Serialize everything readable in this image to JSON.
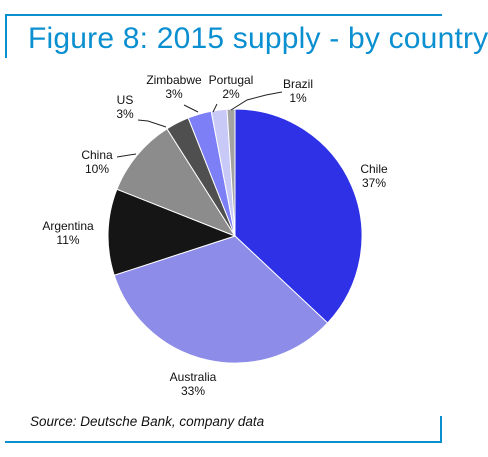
{
  "title": "Figure 8: 2015 supply - by country",
  "source": "Source: Deutsche Bank, company data",
  "colors": {
    "accent": "#0a8fd0"
  },
  "chart_data": {
    "type": "pie",
    "slices": [
      {
        "label": "Chile",
        "value": 37,
        "value_label": "37%",
        "color": "#2e31e6"
      },
      {
        "label": "Australia",
        "value": 33,
        "value_label": "33%",
        "color": "#8d8ce8"
      },
      {
        "label": "Argentina",
        "value": 11,
        "value_label": "11%",
        "color": "#151515"
      },
      {
        "label": "China",
        "value": 10,
        "value_label": "10%",
        "color": "#8c8c8c"
      },
      {
        "label": "US",
        "value": 3,
        "value_label": "3%",
        "color": "#4f4f4f"
      },
      {
        "label": "Zimbabwe",
        "value": 3,
        "value_label": "3%",
        "color": "#7c7ff5"
      },
      {
        "label": "Portugal",
        "value": 2,
        "value_label": "2%",
        "color": "#c8c9f6"
      },
      {
        "label": "Brazil",
        "value": 1,
        "value_label": "1%",
        "color": "#a3a3a3"
      }
    ]
  }
}
